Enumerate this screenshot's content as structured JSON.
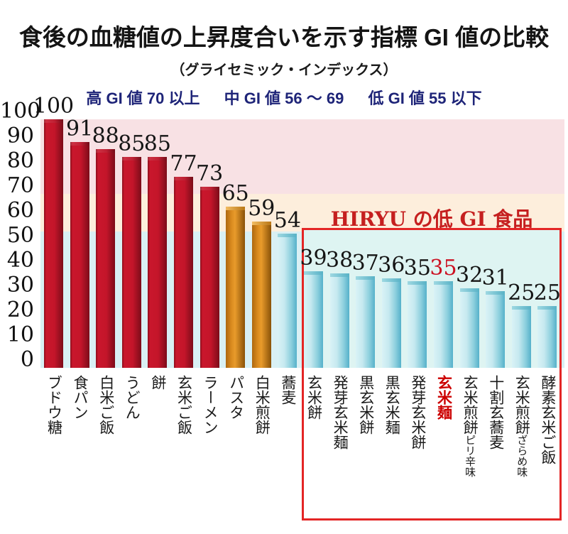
{
  "title": "食後の血糖値の上昇度合いを示す指標 GI 値の比較",
  "subtitle": "（グライセミック・インデックス）",
  "legend": {
    "high": "高 GI 値 70 以上",
    "mid": "中 GI 値 56 ～ 69",
    "low": "低 GI 値 55 以下",
    "text_color": "#1e2478"
  },
  "hiryu_box": {
    "heading": "HIRYU の低 GI 食品",
    "heading_color": "#c51f1f",
    "border_color": "#e42525"
  },
  "y_axis": {
    "ticks": [
      100,
      90,
      80,
      70,
      60,
      50,
      40,
      30,
      20,
      10,
      0
    ]
  },
  "colors": {
    "bar_red": "#c4152a",
    "bar_orange": "#e08c1e",
    "bar_blue": "#6fbcd2",
    "highlight_value": "#cc1122",
    "highlight_label": "#cc0000"
  },
  "chart_data": {
    "type": "bar",
    "title": "食後の血糖値の上昇度合いを示す指標 GI 値の比較",
    "subtitle": "（グライセミック・インデックス）",
    "ylabel": "",
    "xlabel": "",
    "ylim": [
      0,
      100
    ],
    "grid": false,
    "bands": [
      {
        "name": "high-gi",
        "from": 70,
        "to": 100,
        "color": "#f8e1e4"
      },
      {
        "name": "mid-gi",
        "from": 55,
        "to": 70,
        "color": "#fdeedc"
      },
      {
        "name": "low-gi",
        "from": 0,
        "to": 55,
        "color": "#d9f0f4"
      }
    ],
    "items": [
      {
        "label": "ブドウ糖",
        "value": 100,
        "color": "red"
      },
      {
        "label": "食パン",
        "value": 91,
        "color": "red"
      },
      {
        "label": "白米ご飯",
        "value": 88,
        "color": "red"
      },
      {
        "label": "うどん",
        "value": 85,
        "color": "red"
      },
      {
        "label": "餅",
        "value": 85,
        "color": "red"
      },
      {
        "label": "玄米ご飯",
        "value": 77,
        "color": "red"
      },
      {
        "label": "ラーメン",
        "value": 73,
        "color": "red"
      },
      {
        "label": "パスタ",
        "value": 65,
        "color": "orange"
      },
      {
        "label": "白米煎餅",
        "value": 59,
        "color": "orange"
      },
      {
        "label": "蕎麦",
        "value": 54,
        "color": "blue"
      },
      {
        "label": "玄米餅",
        "value": 39,
        "color": "blue"
      },
      {
        "label": "発芽玄米麺",
        "value": 38,
        "color": "blue"
      },
      {
        "label": "黒玄米餅",
        "value": 37,
        "color": "blue"
      },
      {
        "label": "黒玄米麺",
        "value": 36,
        "color": "blue"
      },
      {
        "label": "発芽玄米餅",
        "value": 35,
        "color": "blue"
      },
      {
        "label": "玄米麺",
        "value": 35,
        "color": "blue",
        "highlight": true
      },
      {
        "label": "玄米煎餅",
        "suffix": "ピリ辛味",
        "value": 32,
        "color": "blue"
      },
      {
        "label": "十割玄蕎麦",
        "value": 31,
        "color": "blue"
      },
      {
        "label": "玄米煎餅",
        "suffix": "ざらめ味",
        "value": 25,
        "color": "blue"
      },
      {
        "label": "酵素玄米ご飯",
        "value": 25,
        "color": "blue"
      }
    ]
  }
}
